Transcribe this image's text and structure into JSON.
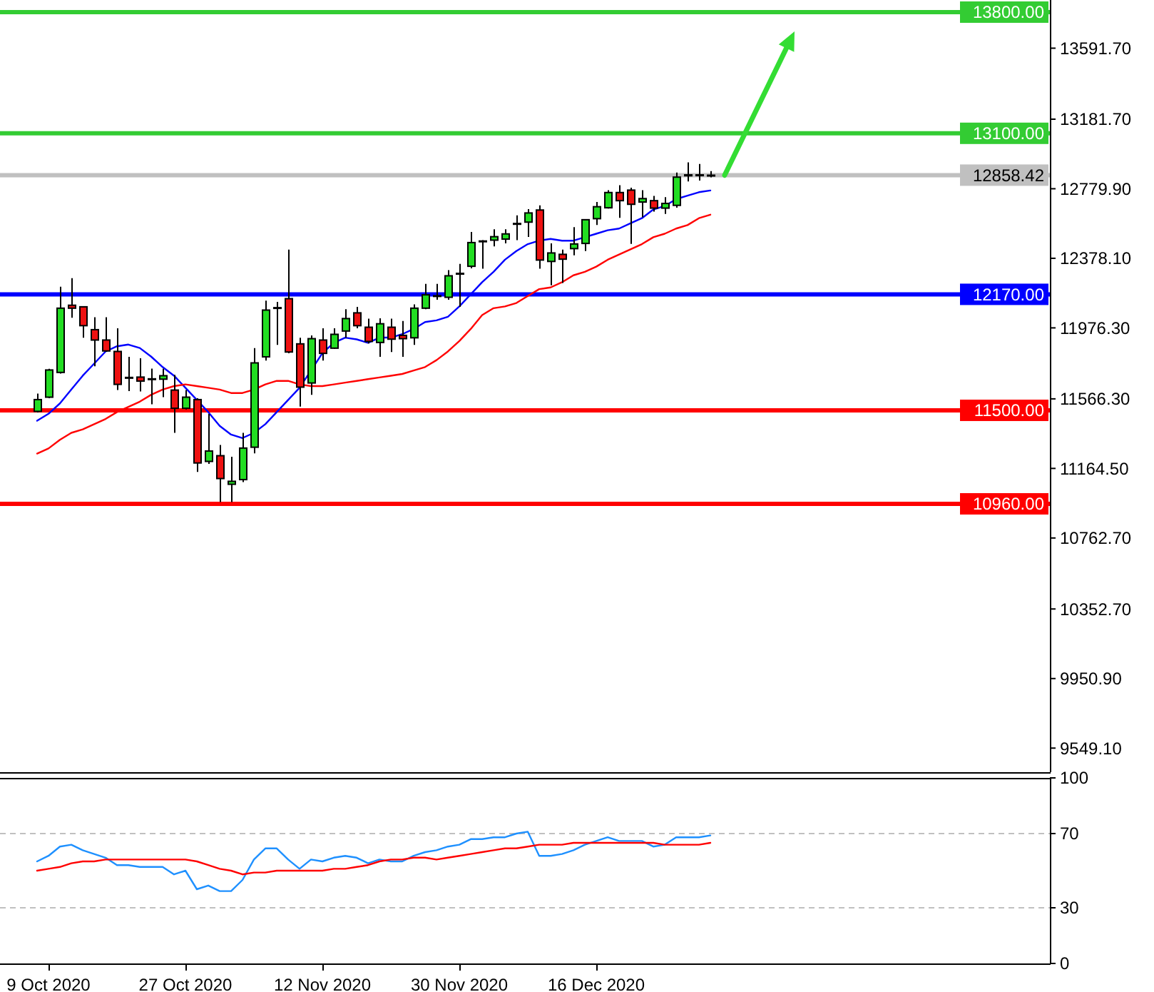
{
  "chart_data": [
    {
      "type": "candlestick",
      "categories": [
        null,
        null,
        null,
        null,
        null,
        null,
        null,
        null,
        null,
        null,
        null,
        null,
        null,
        null,
        null,
        null,
        null,
        null,
        null,
        null,
        null,
        null,
        null,
        null,
        null,
        null,
        null,
        null,
        null,
        null,
        null,
        null,
        null,
        null,
        null,
        null,
        null,
        null,
        null,
        null,
        null,
        null,
        null,
        null,
        null,
        null,
        null,
        null,
        null,
        null,
        null,
        null,
        null,
        null,
        null,
        null,
        null,
        null,
        null,
        null
      ],
      "ohlc": [
        [
          11494,
          11597,
          11488,
          11562
        ],
        [
          11576,
          11740,
          11570,
          11733
        ],
        [
          11719,
          12214,
          11712,
          12090
        ],
        [
          12107,
          12263,
          12035,
          12090
        ],
        [
          12098,
          12102,
          11919,
          11989
        ],
        [
          11966,
          12038,
          11754,
          11906
        ],
        [
          11906,
          12038,
          11838,
          11843
        ],
        [
          11840,
          11974,
          11617,
          11650
        ],
        [
          11690,
          11809,
          11611,
          11686
        ],
        [
          11692,
          11801,
          11609,
          11669
        ],
        [
          11682,
          11741,
          11535,
          11678
        ],
        [
          11680,
          11741,
          11576,
          11700
        ],
        [
          11617,
          11705,
          11370,
          11512
        ],
        [
          11512,
          11617,
          11505,
          11576
        ],
        [
          11562,
          11570,
          11144,
          11196
        ],
        [
          11205,
          11479,
          11191,
          11265
        ],
        [
          11238,
          11300,
          10970,
          11106
        ],
        [
          11073,
          11232,
          10970,
          11090
        ],
        [
          11100,
          11370,
          11086,
          11282
        ],
        [
          11287,
          11859,
          11251,
          11774
        ],
        [
          11809,
          12134,
          11787,
          12079
        ],
        [
          12090,
          12126,
          11878,
          12093
        ],
        [
          12145,
          12428,
          11830,
          11837
        ],
        [
          11884,
          11919,
          11521,
          11634
        ],
        [
          11658,
          11933,
          11589,
          11914
        ],
        [
          11906,
          11974,
          11787,
          11829
        ],
        [
          11859,
          11974,
          11855,
          11939
        ],
        [
          11958,
          12084,
          11919,
          12030
        ],
        [
          12063,
          12098,
          11974,
          11989
        ],
        [
          11980,
          12030,
          11886,
          11898
        ],
        [
          11892,
          12032,
          11809,
          12000
        ],
        [
          11980,
          12030,
          11837,
          11911
        ],
        [
          11933,
          12016,
          11809,
          11914
        ],
        [
          11919,
          12112,
          11878,
          12090
        ],
        [
          12090,
          12230,
          12084,
          12167
        ],
        [
          12160,
          12230,
          12139,
          12162
        ],
        [
          12153,
          12310,
          12139,
          12277
        ],
        [
          12290,
          12346,
          12098,
          12291
        ],
        [
          12332,
          12530,
          12320,
          12469
        ],
        [
          12476,
          12483,
          12318,
          12478
        ],
        [
          12483,
          12546,
          12447,
          12503
        ],
        [
          12489,
          12546,
          12464,
          12519
        ],
        [
          12577,
          12626,
          12483,
          12579
        ],
        [
          12587,
          12662,
          12502,
          12640
        ],
        [
          12657,
          12684,
          12318,
          12368
        ],
        [
          12360,
          12464,
          12222,
          12409
        ],
        [
          12401,
          12428,
          12236,
          12373
        ],
        [
          12434,
          12558,
          12395,
          12461
        ],
        [
          12464,
          12605,
          12420,
          12601
        ],
        [
          12607,
          12703,
          12571,
          12676
        ],
        [
          12670,
          12772,
          12665,
          12758
        ],
        [
          12758,
          12800,
          12612,
          12711
        ],
        [
          12772,
          12786,
          12461,
          12690
        ],
        [
          12703,
          12772,
          12615,
          12723
        ],
        [
          12711,
          12739,
          12648,
          12668
        ],
        [
          12668,
          12731,
          12634,
          12695
        ],
        [
          12684,
          12874,
          12670,
          12847
        ],
        [
          12855,
          12932,
          12822,
          12860
        ],
        [
          12860,
          12923,
          12827,
          12858
        ],
        [
          12858,
          12882,
          12846,
          12858
        ]
      ],
      "colors": [
        "#22dd22",
        "#22dd22",
        "#22dd22",
        "#ee1111",
        "#ee1111",
        "#ee1111",
        "#ee1111",
        "#ee1111",
        "#ee1111",
        "#ee1111",
        "#ee1111",
        "#22dd22",
        "#ee1111",
        "#22dd22",
        "#ee1111",
        "#22dd22",
        "#ee1111",
        "#22dd22",
        "#22dd22",
        "#22dd22",
        "#22dd22",
        "#22dd22",
        "#ee1111",
        "#ee1111",
        "#22dd22",
        "#ee1111",
        "#22dd22",
        "#22dd22",
        "#ee1111",
        "#ee1111",
        "#22dd22",
        "#ee1111",
        "#ee1111",
        "#22dd22",
        "#22dd22",
        "#22dd22",
        "#22dd22",
        "#22dd22",
        "#22dd22",
        "#22dd22",
        "#22dd22",
        "#22dd22",
        "#22dd22",
        "#22dd22",
        "#ee1111",
        "#22dd22",
        "#ee1111",
        "#22dd22",
        "#22dd22",
        "#22dd22",
        "#22dd22",
        "#ee1111",
        "#ee1111",
        "#22dd22",
        "#ee1111",
        "#22dd22",
        "#22dd22",
        "#22dd22",
        "#ee1111",
        "#22dd22"
      ],
      "series": [
        {
          "type": "line",
          "color": "#0000ff",
          "values": [
            11440,
            11480,
            11540,
            11620,
            11700,
            11770,
            11840,
            11870,
            11880,
            11860,
            11810,
            11750,
            11700,
            11630,
            11560,
            11490,
            11410,
            11360,
            11340,
            11370,
            11420,
            11490,
            11560,
            11630,
            11730,
            11830,
            11890,
            11920,
            11910,
            11890,
            11920,
            11920,
            11940,
            11970,
            12010,
            12020,
            12040,
            12100,
            12170,
            12240,
            12300,
            12370,
            12420,
            12460,
            12480,
            12490,
            12480,
            12480,
            12500,
            12520,
            12540,
            12550,
            12580,
            12610,
            12660,
            12680,
            12720,
            12740,
            12760,
            12770
          ]
        },
        {
          "type": "line",
          "color": "#ff0000",
          "values": [
            11250,
            11280,
            11330,
            11370,
            11390,
            11420,
            11450,
            11490,
            11520,
            11550,
            11590,
            11620,
            11640,
            11650,
            11640,
            11630,
            11620,
            11600,
            11600,
            11620,
            11650,
            11670,
            11670,
            11650,
            11640,
            11640,
            11650,
            11660,
            11670,
            11680,
            11690,
            11700,
            11710,
            11730,
            11750,
            11790,
            11840,
            11900,
            11970,
            12050,
            12090,
            12100,
            12120,
            12160,
            12200,
            12210,
            12240,
            12280,
            12300,
            12330,
            12370,
            12400,
            12430,
            12460,
            12500,
            12520,
            12550,
            12570,
            12610,
            12630
          ]
        }
      ],
      "ylim": [
        9410,
        13870
      ],
      "yticks": [
        {
          "value": 13591.7,
          "label": "13591.70"
        },
        {
          "value": 13181.7,
          "label": "13181.70"
        },
        {
          "value": 12779.9,
          "label": "12779.90"
        },
        {
          "value": 12378.1,
          "label": "12378.10"
        },
        {
          "value": 11976.3,
          "label": "11976.30"
        },
        {
          "value": 11566.3,
          "label": "11566.30"
        },
        {
          "value": 11164.5,
          "label": "11164.50"
        },
        {
          "value": 10762.7,
          "label": "10762.70"
        },
        {
          "value": 10352.7,
          "label": "10352.70"
        },
        {
          "value": 9950.9,
          "label": "9950.90"
        },
        {
          "value": 9549.1,
          "label": "9549.10"
        }
      ],
      "ref_lines": [
        {
          "axis": "y",
          "value": 13800,
          "label": "13800.00",
          "color": "#33cc33"
        },
        {
          "axis": "y",
          "value": 13100,
          "label": "13100.00",
          "color": "#33cc33"
        },
        {
          "axis": "y",
          "value": 12858.42,
          "label": "12858.42",
          "color": "#c0c0c0"
        },
        {
          "axis": "y",
          "value": 12170,
          "label": "12170.00",
          "color": "#0000ff"
        },
        {
          "axis": "y",
          "value": 11500,
          "label": "11500.00",
          "color": "#ff0000"
        },
        {
          "axis": "y",
          "value": 10960,
          "label": "10960.00",
          "color": "#ff0000"
        }
      ]
    },
    {
      "type": "line",
      "categories": [
        null,
        "9 Oct 2020",
        null,
        null,
        null,
        null,
        null,
        null,
        null,
        null,
        null,
        null,
        null,
        "27 Oct 2020",
        null,
        null,
        null,
        null,
        null,
        null,
        null,
        null,
        null,
        null,
        null,
        "12 Nov 2020",
        null,
        null,
        null,
        null,
        null,
        null,
        null,
        null,
        null,
        null,
        null,
        "30 Nov 2020",
        null,
        null,
        null,
        null,
        null,
        null,
        null,
        null,
        null,
        null,
        null,
        "16 Dec 2020",
        null,
        null,
        null,
        null,
        null,
        null,
        null,
        null,
        null,
        null
      ],
      "series": [
        {
          "color": "#1e90ff",
          "values": [
            55,
            58,
            63,
            64,
            61,
            59,
            57,
            53,
            53,
            52,
            52,
            52,
            48,
            50,
            40,
            42,
            39,
            39,
            45,
            56,
            62,
            62,
            56,
            51,
            56,
            55,
            57,
            58,
            57,
            54,
            56,
            55,
            55,
            58,
            60,
            61,
            63,
            64,
            67,
            67,
            68,
            68,
            70,
            71,
            58,
            58,
            59,
            61,
            64,
            66,
            68,
            66,
            66,
            66,
            63,
            64,
            68,
            68,
            68,
            69
          ]
        },
        {
          "color": "#ff0000",
          "values": [
            50,
            51,
            52,
            54,
            55,
            55,
            56,
            56,
            56,
            56,
            56,
            56,
            56,
            56,
            55,
            53,
            51,
            50,
            48,
            49,
            49,
            50,
            50,
            50,
            50,
            50,
            51,
            51,
            52,
            53,
            55,
            56,
            56,
            57,
            57,
            56,
            57,
            58,
            59,
            60,
            61,
            62,
            62,
            63,
            64,
            64,
            64,
            65,
            65,
            65,
            65,
            65,
            65,
            65,
            65,
            64,
            64,
            64,
            64,
            65
          ]
        }
      ],
      "ylim": [
        0,
        100
      ],
      "yticks": [
        0,
        30,
        70,
        100
      ],
      "ref_lines": [
        {
          "axis": "y",
          "value": 70,
          "color": "#c0c0c0",
          "line_style": "dashed"
        },
        {
          "axis": "y",
          "value": 30,
          "color": "#c0c0c0",
          "line_style": "dashed"
        }
      ]
    }
  ]
}
